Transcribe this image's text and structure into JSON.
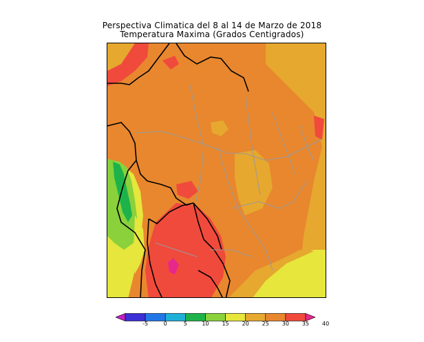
{
  "title": {
    "line1": "Perspectiva Climatica del 8 al 14 de Marzo de 2018",
    "line2": "Temperatura Maxima (Grados Centigrados)"
  },
  "map": {
    "region": "South America (Brazil and neighbouring countries)",
    "variable": "Maximum temperature",
    "units": "°C"
  },
  "colorbar": {
    "ticks": [
      "-5",
      "0",
      "5",
      "10",
      "15",
      "20",
      "25",
      "30",
      "35",
      "40"
    ],
    "colors": [
      "#c21fc9",
      "#3b2fd6",
      "#2277e8",
      "#1fb0d8",
      "#1eb34a",
      "#8ad13c",
      "#e6e63c",
      "#e6a82e",
      "#e8872e",
      "#f04a3c",
      "#e8278a"
    ]
  }
}
